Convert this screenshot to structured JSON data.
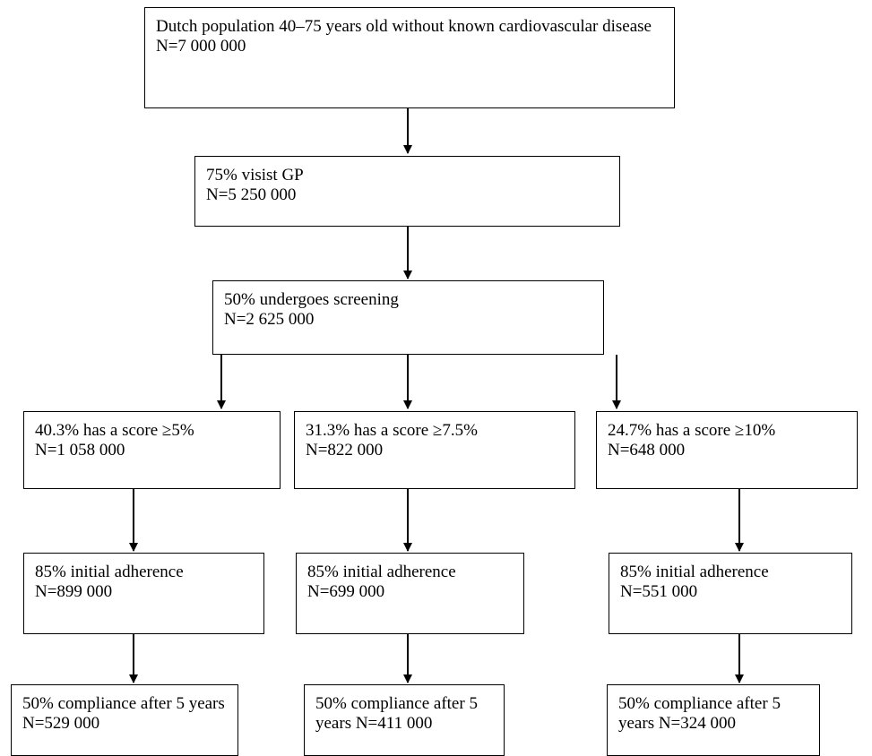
{
  "nodes": {
    "population": {
      "text": "Dutch population 40–75 years old without known cardiovascular disease",
      "n": "N=7 000 000"
    },
    "visit_gp": {
      "text": "75% visist GP",
      "n": "N=5 250 000"
    },
    "screening": {
      "text": "50% undergoes screening",
      "n": "N=2 625 000"
    },
    "branches": [
      {
        "score": {
          "text": "40.3% has a score ≥5%",
          "n": "N=1 058 000"
        },
        "adherence": {
          "text": "85% initial adherence",
          "n": "N=899 000"
        },
        "compliance": {
          "text": "50% compliance after 5 years N=529 000"
        }
      },
      {
        "score": {
          "text": "31.3% has a score ≥7.5%",
          "n": "N=822 000"
        },
        "adherence": {
          "text": "85% initial adherence",
          "n": "N=699 000"
        },
        "compliance": {
          "text": "50% compliance after 5 years N=411 000"
        }
      },
      {
        "score": {
          "text": "24.7% has a score ≥10%",
          "n": "N=648 000"
        },
        "adherence": {
          "text": "85% initial adherence",
          "n": "N=551 000"
        },
        "compliance": {
          "text": "50% compliance after 5 years N=324 000"
        }
      }
    ]
  }
}
